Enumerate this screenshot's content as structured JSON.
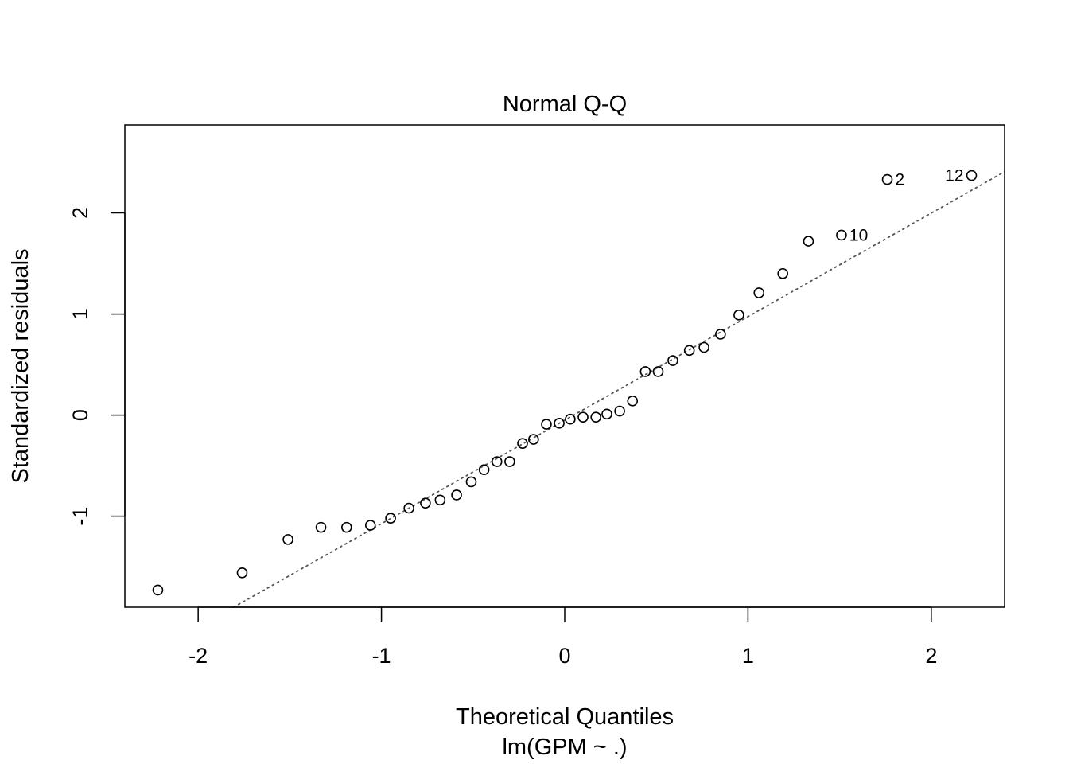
{
  "chart_data": {
    "type": "scatter",
    "title": "Normal Q-Q",
    "xlabel": "Theoretical Quantiles",
    "subtitle": "lm(GPM ~ .)",
    "ylabel": "Standardized residuals",
    "xlim": [
      -2.4,
      2.4
    ],
    "ylim": [
      -1.9,
      2.87
    ],
    "xticks": [
      -2,
      -1,
      0,
      1,
      2
    ],
    "xtick_labels": [
      "-2",
      "-1",
      "0",
      "1",
      "2"
    ],
    "yticks": [
      -1,
      0,
      1,
      2
    ],
    "ytick_labels": [
      "-1",
      "0",
      "1",
      "2"
    ],
    "grid": false,
    "points": [
      {
        "x": -2.22,
        "y": -1.73
      },
      {
        "x": -1.76,
        "y": -1.56
      },
      {
        "x": -1.51,
        "y": -1.23
      },
      {
        "x": -1.33,
        "y": -1.11
      },
      {
        "x": -1.19,
        "y": -1.11
      },
      {
        "x": -1.06,
        "y": -1.09
      },
      {
        "x": -0.95,
        "y": -1.02
      },
      {
        "x": -0.85,
        "y": -0.92
      },
      {
        "x": -0.76,
        "y": -0.87
      },
      {
        "x": -0.68,
        "y": -0.84
      },
      {
        "x": -0.59,
        "y": -0.79
      },
      {
        "x": -0.51,
        "y": -0.66
      },
      {
        "x": -0.44,
        "y": -0.54
      },
      {
        "x": -0.37,
        "y": -0.46
      },
      {
        "x": -0.3,
        "y": -0.46
      },
      {
        "x": -0.23,
        "y": -0.28
      },
      {
        "x": -0.17,
        "y": -0.24
      },
      {
        "x": -0.1,
        "y": -0.09
      },
      {
        "x": -0.03,
        "y": -0.08
      },
      {
        "x": 0.03,
        "y": -0.04
      },
      {
        "x": 0.1,
        "y": -0.02
      },
      {
        "x": 0.17,
        "y": -0.02
      },
      {
        "x": 0.23,
        "y": 0.01
      },
      {
        "x": 0.3,
        "y": 0.04
      },
      {
        "x": 0.37,
        "y": 0.14
      },
      {
        "x": 0.44,
        "y": 0.43
      },
      {
        "x": 0.51,
        "y": 0.43
      },
      {
        "x": 0.59,
        "y": 0.54
      },
      {
        "x": 0.68,
        "y": 0.64
      },
      {
        "x": 0.76,
        "y": 0.67
      },
      {
        "x": 0.85,
        "y": 0.8
      },
      {
        "x": 0.95,
        "y": 0.99
      },
      {
        "x": 1.06,
        "y": 1.21
      },
      {
        "x": 1.19,
        "y": 1.4
      },
      {
        "x": 1.33,
        "y": 1.72
      },
      {
        "x": 1.51,
        "y": 1.78,
        "label": "10"
      },
      {
        "x": 1.76,
        "y": 2.33,
        "label": "2"
      },
      {
        "x": 2.22,
        "y": 2.37,
        "label": "12"
      }
    ],
    "reference_line": {
      "style": "dotted",
      "color": "#555555",
      "slope": 1.024,
      "intercept": -0.05
    }
  }
}
